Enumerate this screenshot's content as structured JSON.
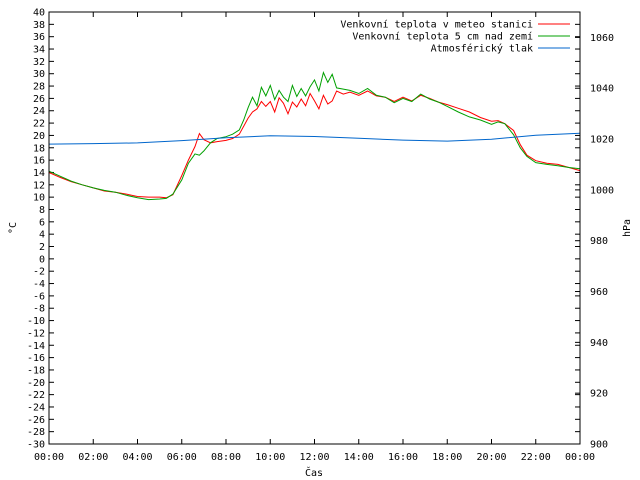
{
  "chart_data": {
    "type": "line",
    "ylabel": "°C",
    "y2label": "hPa",
    "xlabel": "Čas",
    "x_ticks": [
      "00:00",
      "02:00",
      "04:00",
      "06:00",
      "08:00",
      "10:00",
      "12:00",
      "14:00",
      "16:00",
      "18:00",
      "20:00",
      "22:00",
      "00:00"
    ],
    "ylim": [
      -30,
      40
    ],
    "y_ticks": [
      40,
      38,
      36,
      34,
      32,
      30,
      28,
      26,
      24,
      22,
      20,
      18,
      16,
      14,
      12,
      10,
      8,
      6,
      4,
      2,
      0,
      -2,
      -4,
      -6,
      -8,
      -10,
      -12,
      -14,
      -16,
      -18,
      -20,
      -22,
      -24,
      -26,
      -28,
      -30
    ],
    "y2lim": [
      900,
      1070
    ],
    "y2_ticks": [
      1060,
      1040,
      1020,
      1000,
      980,
      960,
      940,
      920,
      900
    ],
    "grid": false,
    "legend_position": "top-right",
    "series": [
      {
        "name": "Venkovní teplota v meteo stanici",
        "color": "#ff0000",
        "axis": "left",
        "x_hours": [
          0,
          0.5,
          1,
          1.5,
          2,
          2.5,
          3,
          3.5,
          4,
          4.5,
          5,
          5.3,
          5.6,
          6,
          6.3,
          6.6,
          6.8,
          7,
          7.3,
          7.6,
          8,
          8.3,
          8.6,
          8.8,
          9,
          9.2,
          9.4,
          9.6,
          9.8,
          10,
          10.2,
          10.4,
          10.6,
          10.8,
          11,
          11.2,
          11.4,
          11.6,
          11.8,
          12,
          12.2,
          12.4,
          12.6,
          12.8,
          13,
          13.3,
          13.6,
          14,
          14.4,
          14.8,
          15.2,
          15.6,
          16,
          16.4,
          16.8,
          17.2,
          17.6,
          18,
          18.5,
          19,
          19.5,
          20,
          20.3,
          20.6,
          21,
          21.3,
          21.6,
          22,
          22.5,
          23,
          23.5,
          24
        ],
        "values": [
          14,
          13.2,
          12.5,
          12,
          11.5,
          11,
          10.8,
          10.5,
          10.1,
          10,
          10,
          9.9,
          10.4,
          13.5,
          16,
          18.2,
          20.3,
          19.3,
          18.8,
          19,
          19.2,
          19.5,
          20.2,
          21.5,
          22.8,
          23.8,
          24.3,
          25.5,
          24.7,
          25.5,
          23.8,
          26.1,
          25.2,
          23.5,
          25.4,
          24.6,
          25.9,
          24.8,
          26.8,
          25.6,
          24.3,
          26.5,
          25.1,
          25.6,
          27.2,
          26.7,
          27,
          26.5,
          27.2,
          26.4,
          26.2,
          25.5,
          26.2,
          25.6,
          26.5,
          26,
          25.4,
          25,
          24.4,
          23.8,
          22.9,
          22.3,
          22.4,
          21.9,
          20.8,
          18.5,
          16.8,
          15.9,
          15.5,
          15.3,
          14.8,
          14.3
        ]
      },
      {
        "name": "Venkovní teplota 5 cm nad zemí",
        "color": "#00a000",
        "axis": "left",
        "x_hours": [
          0,
          0.5,
          1,
          1.5,
          2,
          2.5,
          3,
          3.5,
          4,
          4.5,
          5,
          5.3,
          5.6,
          6,
          6.3,
          6.6,
          6.8,
          7,
          7.3,
          7.6,
          8,
          8.3,
          8.6,
          8.8,
          9,
          9.2,
          9.4,
          9.6,
          9.8,
          10,
          10.2,
          10.4,
          10.6,
          10.8,
          11,
          11.2,
          11.4,
          11.6,
          11.8,
          12,
          12.2,
          12.4,
          12.6,
          12.8,
          13,
          13.3,
          13.6,
          14,
          14.4,
          14.8,
          15.2,
          15.6,
          16,
          16.4,
          16.8,
          17.2,
          17.6,
          18,
          18.5,
          19,
          19.5,
          20,
          20.3,
          20.6,
          21,
          21.3,
          21.6,
          22,
          22.5,
          23,
          23.5,
          24
        ],
        "values": [
          14.2,
          13.4,
          12.6,
          12,
          11.5,
          11.1,
          10.8,
          10.3,
          9.9,
          9.6,
          9.7,
          9.8,
          10.5,
          12.8,
          15.5,
          17,
          16.8,
          17.5,
          18.8,
          19.5,
          19.8,
          20.2,
          20.9,
          22.5,
          24.5,
          26.2,
          24.8,
          27.8,
          26.4,
          28.1,
          25.8,
          27.3,
          26.2,
          25.5,
          28.1,
          26.3,
          27.6,
          26.4,
          27.9,
          29,
          27.2,
          30.2,
          28.6,
          29.9,
          27.7,
          27.5,
          27.3,
          26.8,
          27.6,
          26.5,
          26.2,
          25.3,
          26,
          25.5,
          26.7,
          25.9,
          25.4,
          24.7,
          23.8,
          23,
          22.5,
          21.8,
          22.2,
          21.9,
          20.1,
          18,
          16.6,
          15.6,
          15.3,
          15.1,
          14.8,
          14.6
        ]
      },
      {
        "name": "Atmosférický tlak",
        "color": "#0066cc",
        "axis": "right",
        "x_hours": [
          0,
          2,
          4,
          6,
          8,
          10,
          12,
          14,
          16,
          18,
          20,
          22,
          24
        ],
        "values": [
          1018,
          1018.2,
          1018.5,
          1019.4,
          1020.5,
          1021.3,
          1021,
          1020.3,
          1019.6,
          1019.2,
          1019.9,
          1021.5,
          1022.3
        ]
      }
    ]
  }
}
